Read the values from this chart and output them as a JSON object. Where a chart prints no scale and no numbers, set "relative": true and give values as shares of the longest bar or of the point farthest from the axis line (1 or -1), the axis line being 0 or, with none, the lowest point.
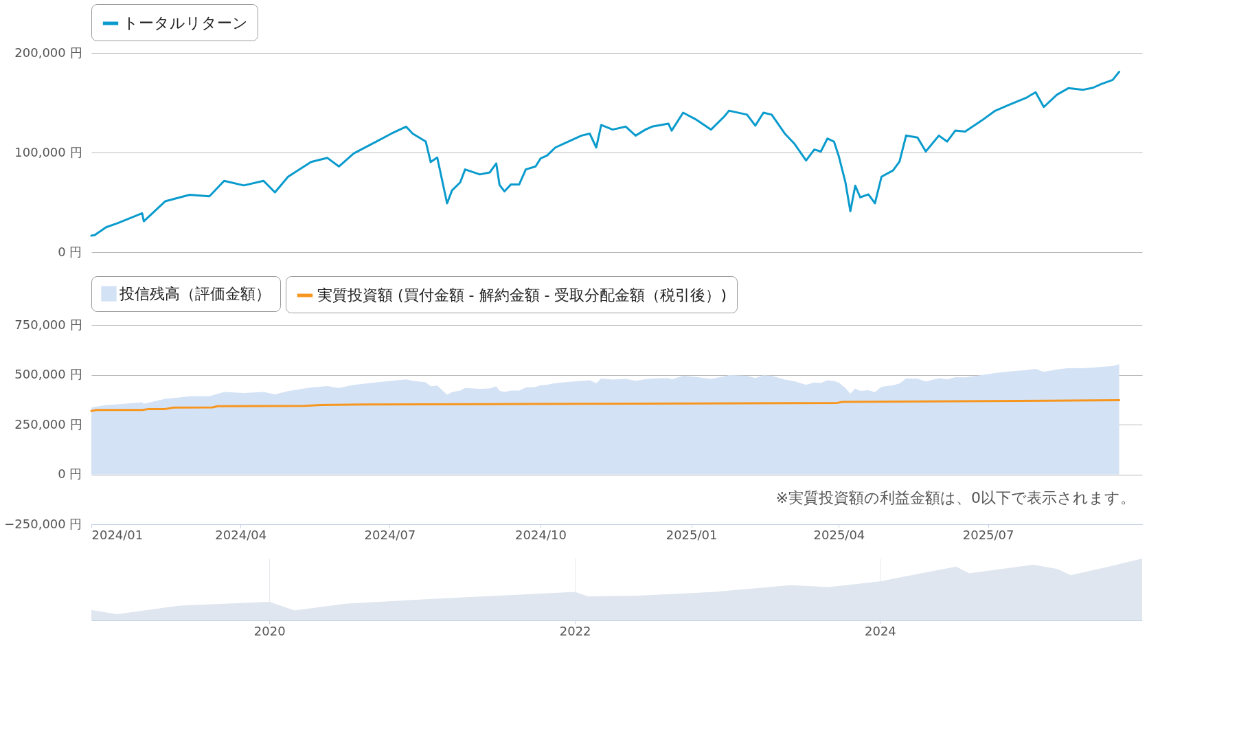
{
  "chart_data": [
    {
      "type": "line",
      "legend": "top left",
      "grid": "y",
      "tick_labels": "y",
      "x": [
        "2024-01-01",
        "2024-01-03",
        "2024-01-10",
        "2024-01-17",
        "2024-02-01",
        "2024-02-02",
        "2024-02-15",
        "2024-03-01",
        "2024-03-13",
        "2024-03-22",
        "2024-04-03",
        "2024-04-15",
        "2024-04-22",
        "2024-04-30",
        "2024-05-14",
        "2024-05-24",
        "2024-05-31",
        "2024-06-09",
        "2024-06-24",
        "2024-07-02",
        "2024-07-11",
        "2024-07-15",
        "2024-07-23",
        "2024-07-26",
        "2024-07-30",
        "2024-08-05",
        "2024-08-08",
        "2024-08-13",
        "2024-08-16",
        "2024-08-25",
        "2024-08-31",
        "2024-09-04",
        "2024-09-06",
        "2024-09-09",
        "2024-09-13",
        "2024-09-18",
        "2024-09-22",
        "2024-09-28",
        "2024-10-01",
        "2024-10-05",
        "2024-10-10",
        "2024-10-14",
        "2024-10-26",
        "2024-10-31",
        "2024-11-04",
        "2024-11-07",
        "2024-11-14",
        "2024-11-22",
        "2024-11-28",
        "2024-12-04",
        "2024-12-08",
        "2024-12-18",
        "2024-12-20",
        "2024-12-27",
        "2025-01-04",
        "2025-01-13",
        "2025-01-21",
        "2025-01-24",
        "2025-02-04",
        "2025-02-09",
        "2025-02-14",
        "2025-02-19",
        "2025-02-27",
        "2025-03-05",
        "2025-03-09",
        "2025-03-12",
        "2025-03-17",
        "2025-03-21",
        "2025-03-25",
        "2025-03-29",
        "2025-04-01",
        "2025-04-05",
        "2025-04-08",
        "2025-04-11",
        "2025-04-14",
        "2025-04-19",
        "2025-04-23",
        "2025-04-27",
        "2025-05-04",
        "2025-05-08",
        "2025-05-12",
        "2025-05-19",
        "2025-05-24",
        "2025-06-01",
        "2025-06-06",
        "2025-06-11",
        "2025-06-17",
        "2025-06-27",
        "2025-07-05",
        "2025-07-14",
        "2025-07-24",
        "2025-07-30",
        "2025-08-04",
        "2025-08-12",
        "2025-08-19",
        "2025-08-28",
        "2025-09-03",
        "2025-09-08",
        "2025-09-15",
        "2025-09-17",
        "2025-09-19"
      ],
      "xlim": [
        "2024-01-01",
        "2025-10-03"
      ],
      "ylim": [
        0,
        200000
      ],
      "yticks": [
        {
          "value": 0,
          "label": "0 円"
        },
        {
          "value": 100000,
          "label": "100,000 円"
        },
        {
          "value": 200000,
          "label": "200,000 円"
        }
      ],
      "series": [
        {
          "name": "トータルリターン",
          "color": "#0a9bcd",
          "values": [
            16500,
            17000,
            25000,
            29000,
            39000,
            31000,
            51000,
            57600,
            56000,
            71600,
            67000,
            71600,
            60000,
            75700,
            90500,
            94600,
            86000,
            99000,
            112000,
            119000,
            126000,
            119000,
            111000,
            90500,
            95000,
            49000,
            62000,
            70000,
            83000,
            78000,
            80000,
            89000,
            67500,
            61000,
            68000,
            68000,
            83000,
            86000,
            94000,
            97000,
            105000,
            108000,
            117000,
            119000,
            105000,
            127600,
            123000,
            126000,
            117000,
            123000,
            126000,
            129000,
            122000,
            140000,
            133000,
            123000,
            136000,
            142000,
            138000,
            127000,
            140000,
            138000,
            119000,
            108600,
            99000,
            92000,
            103000,
            101000,
            114000,
            111000,
            96000,
            70000,
            41000,
            66700,
            55000,
            58000,
            49000,
            75700,
            82000,
            91000,
            117000,
            115000,
            101000,
            117000,
            111000,
            122000,
            121000,
            132000,
            141600,
            148000,
            154700,
            160500,
            145700,
            158000,
            164600,
            163000,
            165000,
            168700,
            172800,
            177000,
            181000
          ]
        }
      ]
    },
    {
      "type": "area",
      "legend": "top left",
      "grid": "y",
      "x": [
        "2024-01-01",
        "2024-01-03",
        "2024-01-10",
        "2024-01-17",
        "2024-02-01",
        "2024-02-02",
        "2024-02-15",
        "2024-03-01",
        "2024-03-13",
        "2024-03-22",
        "2024-04-03",
        "2024-04-15",
        "2024-04-22",
        "2024-04-30",
        "2024-05-14",
        "2024-05-24",
        "2024-05-31",
        "2024-06-09",
        "2024-06-24",
        "2024-07-02",
        "2024-07-11",
        "2024-07-15",
        "2024-07-23",
        "2024-07-26",
        "2024-07-30",
        "2024-08-05",
        "2024-08-08",
        "2024-08-13",
        "2024-08-16",
        "2024-08-25",
        "2024-08-31",
        "2024-09-04",
        "2024-09-06",
        "2024-09-09",
        "2024-09-13",
        "2024-09-18",
        "2024-09-22",
        "2024-09-28",
        "2024-10-01",
        "2024-10-05",
        "2024-10-10",
        "2024-10-14",
        "2024-10-26",
        "2024-10-31",
        "2024-11-04",
        "2024-11-07",
        "2024-11-14",
        "2024-11-22",
        "2024-11-28",
        "2024-12-04",
        "2024-12-08",
        "2024-12-18",
        "2024-12-20",
        "2024-12-27",
        "2025-01-04",
        "2025-01-13",
        "2025-01-21",
        "2025-01-24",
        "2025-02-04",
        "2025-02-09",
        "2025-02-14",
        "2025-02-19",
        "2025-02-27",
        "2025-03-05",
        "2025-03-09",
        "2025-03-12",
        "2025-03-17",
        "2025-03-21",
        "2025-03-25",
        "2025-03-29",
        "2025-04-01",
        "2025-04-05",
        "2025-04-08",
        "2025-04-11",
        "2025-04-14",
        "2025-04-19",
        "2025-04-23",
        "2025-04-27",
        "2025-05-04",
        "2025-05-08",
        "2025-05-12",
        "2025-05-19",
        "2025-05-24",
        "2025-06-01",
        "2025-06-06",
        "2025-06-11",
        "2025-06-17",
        "2025-06-27",
        "2025-07-05",
        "2025-07-14",
        "2025-07-24",
        "2025-07-30",
        "2025-08-04",
        "2025-08-12",
        "2025-08-19",
        "2025-08-28",
        "2025-09-03",
        "2025-09-08",
        "2025-09-15",
        "2025-09-17",
        "2025-09-19"
      ],
      "xlim": [
        "2024-01-01",
        "2025-10-03"
      ],
      "xticks": [
        {
          "value": "2024-01",
          "label": "2024/01"
        },
        {
          "value": "2024-04",
          "label": "2024/04"
        },
        {
          "value": "2024-07",
          "label": "2024/07"
        },
        {
          "value": "2024-10",
          "label": "2024/10"
        },
        {
          "value": "2025-01",
          "label": "2025/01"
        },
        {
          "value": "2025-04",
          "label": "2025/04"
        },
        {
          "value": "2025-07",
          "label": "2025/07"
        }
      ],
      "ylim": [
        -250000,
        750000
      ],
      "yticks": [
        {
          "value": -250000,
          "label": "−250,000 円"
        },
        {
          "value": 0,
          "label": "0 円"
        },
        {
          "value": 250000,
          "label": "250,000 円"
        },
        {
          "value": 500000,
          "label": "500,000 円"
        },
        {
          "value": 750000,
          "label": "750,000 円"
        }
      ],
      "annotations": [
        "※実質投資額の利益金額は、0以下で表示されます。"
      ],
      "series": [
        {
          "name": "投信残高（評価金額）",
          "type": "area",
          "color": "#d4e2f5",
          "values": [
            335000,
            339000,
            348000,
            352000,
            362000,
            354000,
            379000,
            392000,
            392000,
            414000,
            409000,
            414000,
            402000,
            418000,
            436000,
            443000,
            434000,
            449000,
            463000,
            470000,
            477000,
            470000,
            462000,
            442000,
            446000,
            400000,
            413000,
            421000,
            434000,
            429000,
            431000,
            442000,
            420000,
            414000,
            421000,
            421000,
            436000,
            439000,
            447000,
            450000,
            458000,
            461000,
            470000,
            472000,
            458000,
            481000,
            476000,
            479000,
            470000,
            478000,
            481000,
            484000,
            477000,
            495000,
            489000,
            479000,
            492000,
            498000,
            495000,
            484000,
            497000,
            495000,
            476000,
            467000,
            457000,
            450000,
            461000,
            459000,
            472000,
            469000,
            460000,
            434000,
            405000,
            431000,
            419000,
            422000,
            413000,
            440000,
            447000,
            456000,
            482000,
            480000,
            466000,
            483000,
            477000,
            488000,
            487000,
            498000,
            509000,
            516000,
            523000,
            529000,
            515000,
            527000,
            534000,
            533000,
            536000,
            540000,
            544000,
            548000,
            553000
          ]
        },
        {
          "name": "実質投資額 (買付金額 - 解約金額 - 受取分配金額（税引後）)",
          "type": "line",
          "color": "#f7961e",
          "x": [
            "2024-01-01",
            "2024-01-04",
            "2024-02-01",
            "2024-02-05",
            "2024-02-15",
            "2024-02-20",
            "2024-03-15",
            "2024-03-18",
            "2024-05-10",
            "2024-05-20",
            "2024-06-15",
            "2024-09-01",
            "2024-12-01",
            "2025-03-31",
            "2025-04-03",
            "2025-09-19"
          ],
          "values": [
            318000,
            323000,
            323000,
            328000,
            328000,
            335000,
            336000,
            342000,
            344000,
            348000,
            351000,
            353000,
            355000,
            359000,
            364000,
            372000
          ]
        }
      ]
    },
    {
      "type": "area",
      "relative": true,
      "grid": "x",
      "x": [
        "2018-11",
        "2019-01",
        "2019-06",
        "2020-01",
        "2020-03",
        "2020-07",
        "2021-01",
        "2021-07",
        "2022-01",
        "2022-02",
        "2022-06",
        "2022-12",
        "2023-06",
        "2023-09",
        "2024-01",
        "2024-03",
        "2024-07",
        "2024-08",
        "2025-01",
        "2025-03",
        "2025-04",
        "2025-07",
        "2025-09-19"
      ],
      "xlim": [
        "2018-11",
        "2025-09-19"
      ],
      "xticks": [
        {
          "value": "2020-01-01",
          "label": "2020"
        },
        {
          "value": "2022-01-01",
          "label": "2022"
        },
        {
          "value": "2024-01-01",
          "label": "2024"
        }
      ],
      "series": [
        {
          "color": "#dfe6ef",
          "values": [
            0.17,
            0.1,
            0.24,
            0.3,
            0.16,
            0.27,
            0.34,
            0.4,
            0.46,
            0.39,
            0.4,
            0.46,
            0.57,
            0.54,
            0.63,
            0.71,
            0.87,
            0.76,
            0.9,
            0.83,
            0.73,
            0.87,
            1.0
          ]
        }
      ]
    }
  ]
}
